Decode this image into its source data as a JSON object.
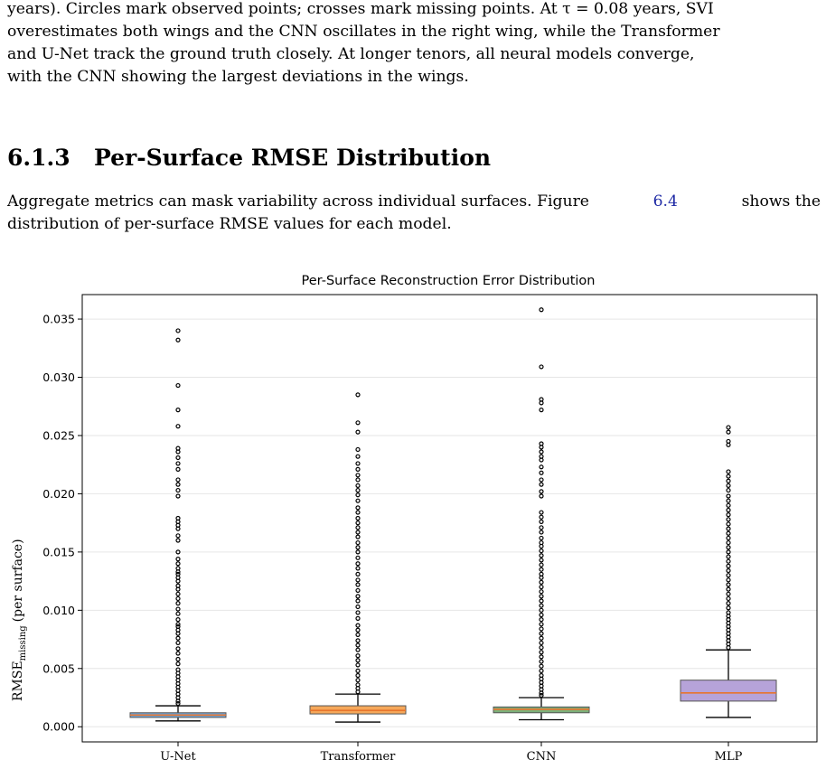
{
  "paper": {
    "intro_paragraph": {
      "line1": "years). Circles mark observed points; crosses mark missing points. At τ = 0.08 years, SVI",
      "line2": "overestimates both wings and the CNN oscillates in the right wing, while the Transformer",
      "line3": "and U-Net track the ground truth closely. At longer tenors, all neural models converge,",
      "line4": "with the CNN showing the largest deviations in the wings."
    },
    "section": {
      "number": "6.1.3",
      "title": "Per-Surface RMSE Distribution"
    },
    "body_paragraph": {
      "line1_before": "Aggregate metrics can mask variability across individual surfaces. Figure",
      "figure_ref": "6.4",
      "line1_after": "shows the",
      "line2": "distribution of per-surface RMSE values for each model."
    }
  },
  "chart_data": {
    "type": "box",
    "title": "Per-Surface Reconstruction Error Distribution",
    "ylabel_main": "RMSE",
    "ylabel_subscript": "missing",
    "ylabel_suffix": "(per surface)",
    "xlabel": "",
    "ylim": [
      -0.0013,
      0.0371
    ],
    "yticks": [
      "0.000",
      "0.005",
      "0.010",
      "0.015",
      "0.020",
      "0.025",
      "0.030",
      "0.035"
    ],
    "grid": "horizontal",
    "categories": [
      "U-Net",
      "Transformer",
      "CNN",
      "MLP"
    ],
    "boxes": [
      {
        "category": "U-Net",
        "color": "#6fa8dc",
        "whisker_low": 0.0005,
        "q1": 0.0008,
        "median": 0.001,
        "q3": 0.0012,
        "whisker_high": 0.0018,
        "outliers": [
          0.034,
          0.0332,
          0.0293,
          0.0272,
          0.0258,
          0.0239,
          0.0236,
          0.0231,
          0.0226,
          0.0221,
          0.0212,
          0.0208,
          0.0203,
          0.0198,
          0.0179,
          0.0176,
          0.0173,
          0.017,
          0.0164,
          0.016,
          0.015,
          0.0144,
          0.014,
          0.0136,
          0.0133,
          0.0131,
          0.0128,
          0.0125,
          0.0121,
          0.0118,
          0.0114,
          0.011,
          0.0106,
          0.0101,
          0.0097,
          0.0092,
          0.0088,
          0.0086,
          0.0083,
          0.008,
          0.0076,
          0.0072,
          0.0067,
          0.0063,
          0.0058,
          0.0054,
          0.0049,
          0.0046,
          0.0043,
          0.004,
          0.0037,
          0.0034,
          0.0031,
          0.0028,
          0.0025,
          0.0022,
          0.002
        ]
      },
      {
        "category": "Transformer",
        "color": "#f5a85a",
        "whisker_low": 0.0004,
        "q1": 0.0011,
        "median": 0.0014,
        "q3": 0.0018,
        "whisker_high": 0.0028,
        "outliers": [
          0.0285,
          0.0261,
          0.0253,
          0.0238,
          0.0232,
          0.0226,
          0.0221,
          0.0216,
          0.0212,
          0.0207,
          0.0203,
          0.0199,
          0.0194,
          0.0188,
          0.0184,
          0.0179,
          0.0175,
          0.0171,
          0.0167,
          0.0163,
          0.0158,
          0.0154,
          0.015,
          0.0145,
          0.014,
          0.0136,
          0.0131,
          0.0126,
          0.0122,
          0.0117,
          0.0112,
          0.0108,
          0.0103,
          0.0098,
          0.0093,
          0.0087,
          0.0083,
          0.0079,
          0.0074,
          0.007,
          0.0066,
          0.0061,
          0.0057,
          0.0053,
          0.0048,
          0.0044,
          0.004,
          0.0036,
          0.0033,
          0.003
        ]
      },
      {
        "category": "CNN",
        "color": "#7cb07a",
        "whisker_low": 0.0006,
        "q1": 0.0012,
        "median": 0.0015,
        "q3": 0.0017,
        "whisker_high": 0.0025,
        "outliers": [
          0.0358,
          0.0309,
          0.0281,
          0.0278,
          0.0272,
          0.0243,
          0.024,
          0.0236,
          0.0232,
          0.0229,
          0.0223,
          0.0218,
          0.0212,
          0.0208,
          0.0202,
          0.0198,
          0.0184,
          0.018,
          0.0176,
          0.0171,
          0.0167,
          0.0162,
          0.0158,
          0.0155,
          0.0151,
          0.0147,
          0.0143,
          0.0139,
          0.0135,
          0.0131,
          0.0128,
          0.0124,
          0.012,
          0.0116,
          0.0112,
          0.0108,
          0.0104,
          0.01,
          0.0096,
          0.0092,
          0.0088,
          0.0084,
          0.008,
          0.0076,
          0.0072,
          0.0068,
          0.0064,
          0.006,
          0.0056,
          0.0052,
          0.0048,
          0.0044,
          0.0041,
          0.0038,
          0.0035,
          0.0032,
          0.0029,
          0.0027
        ]
      },
      {
        "category": "MLP",
        "color": "#b6a3d9",
        "whisker_low": 0.0008,
        "q1": 0.0022,
        "median": 0.0029,
        "q3": 0.004,
        "whisker_high": 0.0066,
        "outliers": [
          0.0257,
          0.0253,
          0.0245,
          0.0242,
          0.0219,
          0.0215,
          0.0211,
          0.0207,
          0.0203,
          0.0198,
          0.0194,
          0.019,
          0.0186,
          0.0182,
          0.0178,
          0.0174,
          0.017,
          0.0166,
          0.0162,
          0.0158,
          0.0154,
          0.015,
          0.0146,
          0.0142,
          0.0138,
          0.0134,
          0.013,
          0.0126,
          0.0122,
          0.0118,
          0.0114,
          0.011,
          0.0106,
          0.0102,
          0.0098,
          0.0095,
          0.0092,
          0.0089,
          0.0086,
          0.0083,
          0.008,
          0.0077,
          0.0074,
          0.0071,
          0.0068
        ]
      }
    ],
    "median_color": "#e8742c"
  }
}
